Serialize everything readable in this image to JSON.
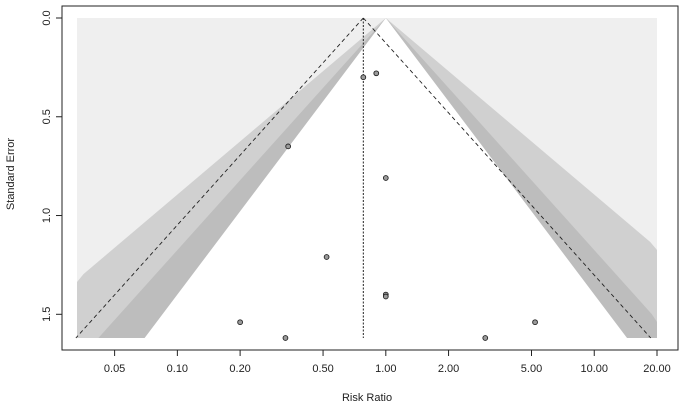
{
  "chart_data": {
    "type": "scatter",
    "subtype": "contour-enhanced funnel plot",
    "xlabel": "Risk Ratio",
    "ylabel": "Standard Error",
    "x_scale": "log",
    "x_ticks": [
      0.05,
      0.1,
      0.2,
      0.5,
      1.0,
      2.0,
      5.0,
      10.0,
      20.0
    ],
    "x_tick_labels": [
      "0.05",
      "0.10",
      "0.20",
      "0.50",
      "1.00",
      "2.00",
      "5.00",
      "10.00",
      "20.00"
    ],
    "y_ticks": [
      0.0,
      0.5,
      1.0,
      1.5
    ],
    "y_tick_labels": [
      "0.0",
      "0.5",
      "1.0",
      "1.5"
    ],
    "y_reversed": true,
    "xlim": [
      0.033,
      20.0
    ],
    "ylim": [
      0.0,
      1.62
    ],
    "null_value": 1.0,
    "pooled_estimate": 0.78,
    "contour_levels": [
      0.9,
      0.95,
      0.99
    ],
    "contour_colors": [
      "#ffffff",
      "#d0d0d0",
      "#bdbdbd",
      "#a8a8a8",
      "#efefef"
    ],
    "points": [
      {
        "rr": 0.78,
        "se": 0.3
      },
      {
        "rr": 0.9,
        "se": 0.28
      },
      {
        "rr": 0.34,
        "se": 0.65
      },
      {
        "rr": 1.0,
        "se": 0.81
      },
      {
        "rr": 0.52,
        "se": 1.21
      },
      {
        "rr": 1.0,
        "se": 1.4
      },
      {
        "rr": 1.0,
        "se": 1.41
      },
      {
        "rr": 0.2,
        "se": 1.54
      },
      {
        "rr": 5.2,
        "se": 1.54
      },
      {
        "rr": 0.33,
        "se": 1.62
      },
      {
        "rr": 3.0,
        "se": 1.62
      }
    ]
  }
}
